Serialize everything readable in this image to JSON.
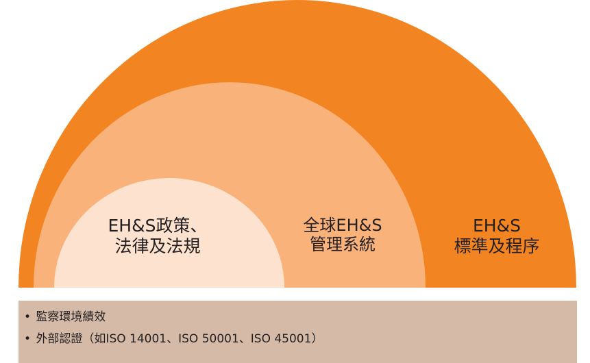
{
  "diagram": {
    "colors": {
      "outer": "#f28522",
      "middle": "#f9b27a",
      "inner": "#fde3cf",
      "background": "#ffffff",
      "bar": "#d5bba7"
    },
    "rings": [
      {
        "name": "outer",
        "line1": "EH&S",
        "line2": "標準及程序"
      },
      {
        "name": "middle",
        "line1": "全球EH&S",
        "line2": "管理系統"
      },
      {
        "name": "inner",
        "line1": "EH&S政策、",
        "line2": "法律及法規"
      }
    ]
  },
  "bullets": {
    "marker": "•",
    "items": [
      "監察環境績效",
      "外部認證（如ISO 14001、ISO 50001、ISO 45001）"
    ]
  }
}
